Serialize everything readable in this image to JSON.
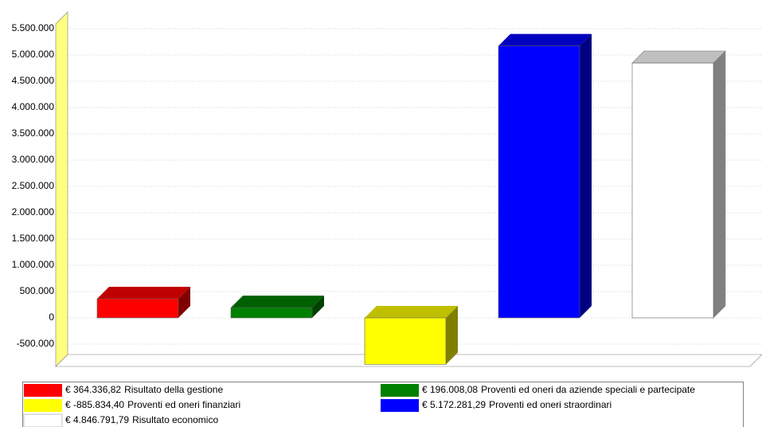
{
  "chart_data": {
    "type": "bar3d",
    "categories": [
      "Risultato della gestione",
      "Proventi ed oneri da aziende speciali e partecipate",
      "Proventi ed oneri finanziari",
      "Proventi ed oneri straordinari",
      "Risultato economico"
    ],
    "values": [
      364336.82,
      196008.08,
      -885834.4,
      5172281.29,
      4846791.79
    ],
    "value_labels": [
      "€  364.336,82",
      "€  196.008,08",
      "€ -885.834,40",
      "€  5.172.281,29",
      "€  4.846.791,79"
    ],
    "colors": [
      "#ff0000",
      "#008000",
      "#ffff00",
      "#0000ff",
      "#ffffff"
    ],
    "ylim": [
      -900000,
      5800000
    ],
    "yticks": [
      {
        "value": -500000,
        "label": "-500.000"
      },
      0,
      {
        "value": 500000,
        "label": "500.000"
      },
      {
        "value": 1000000,
        "label": "1.000.000"
      },
      {
        "value": 1500000,
        "label": "1.500.000"
      },
      {
        "value": 2000000,
        "label": "2.000.000"
      },
      {
        "value": 2500000,
        "label": "2.500.000"
      },
      {
        "value": 3000000,
        "label": "3.000.000"
      },
      {
        "value": 3500000,
        "label": "3.500.000"
      },
      {
        "value": 4000000,
        "label": "4.000.000"
      },
      {
        "value": 4500000,
        "label": "4.500.000"
      },
      {
        "value": 5000000,
        "label": "5.000.000"
      },
      {
        "value": 5500000,
        "label": "5.500.000"
      }
    ],
    "grid": true
  }
}
